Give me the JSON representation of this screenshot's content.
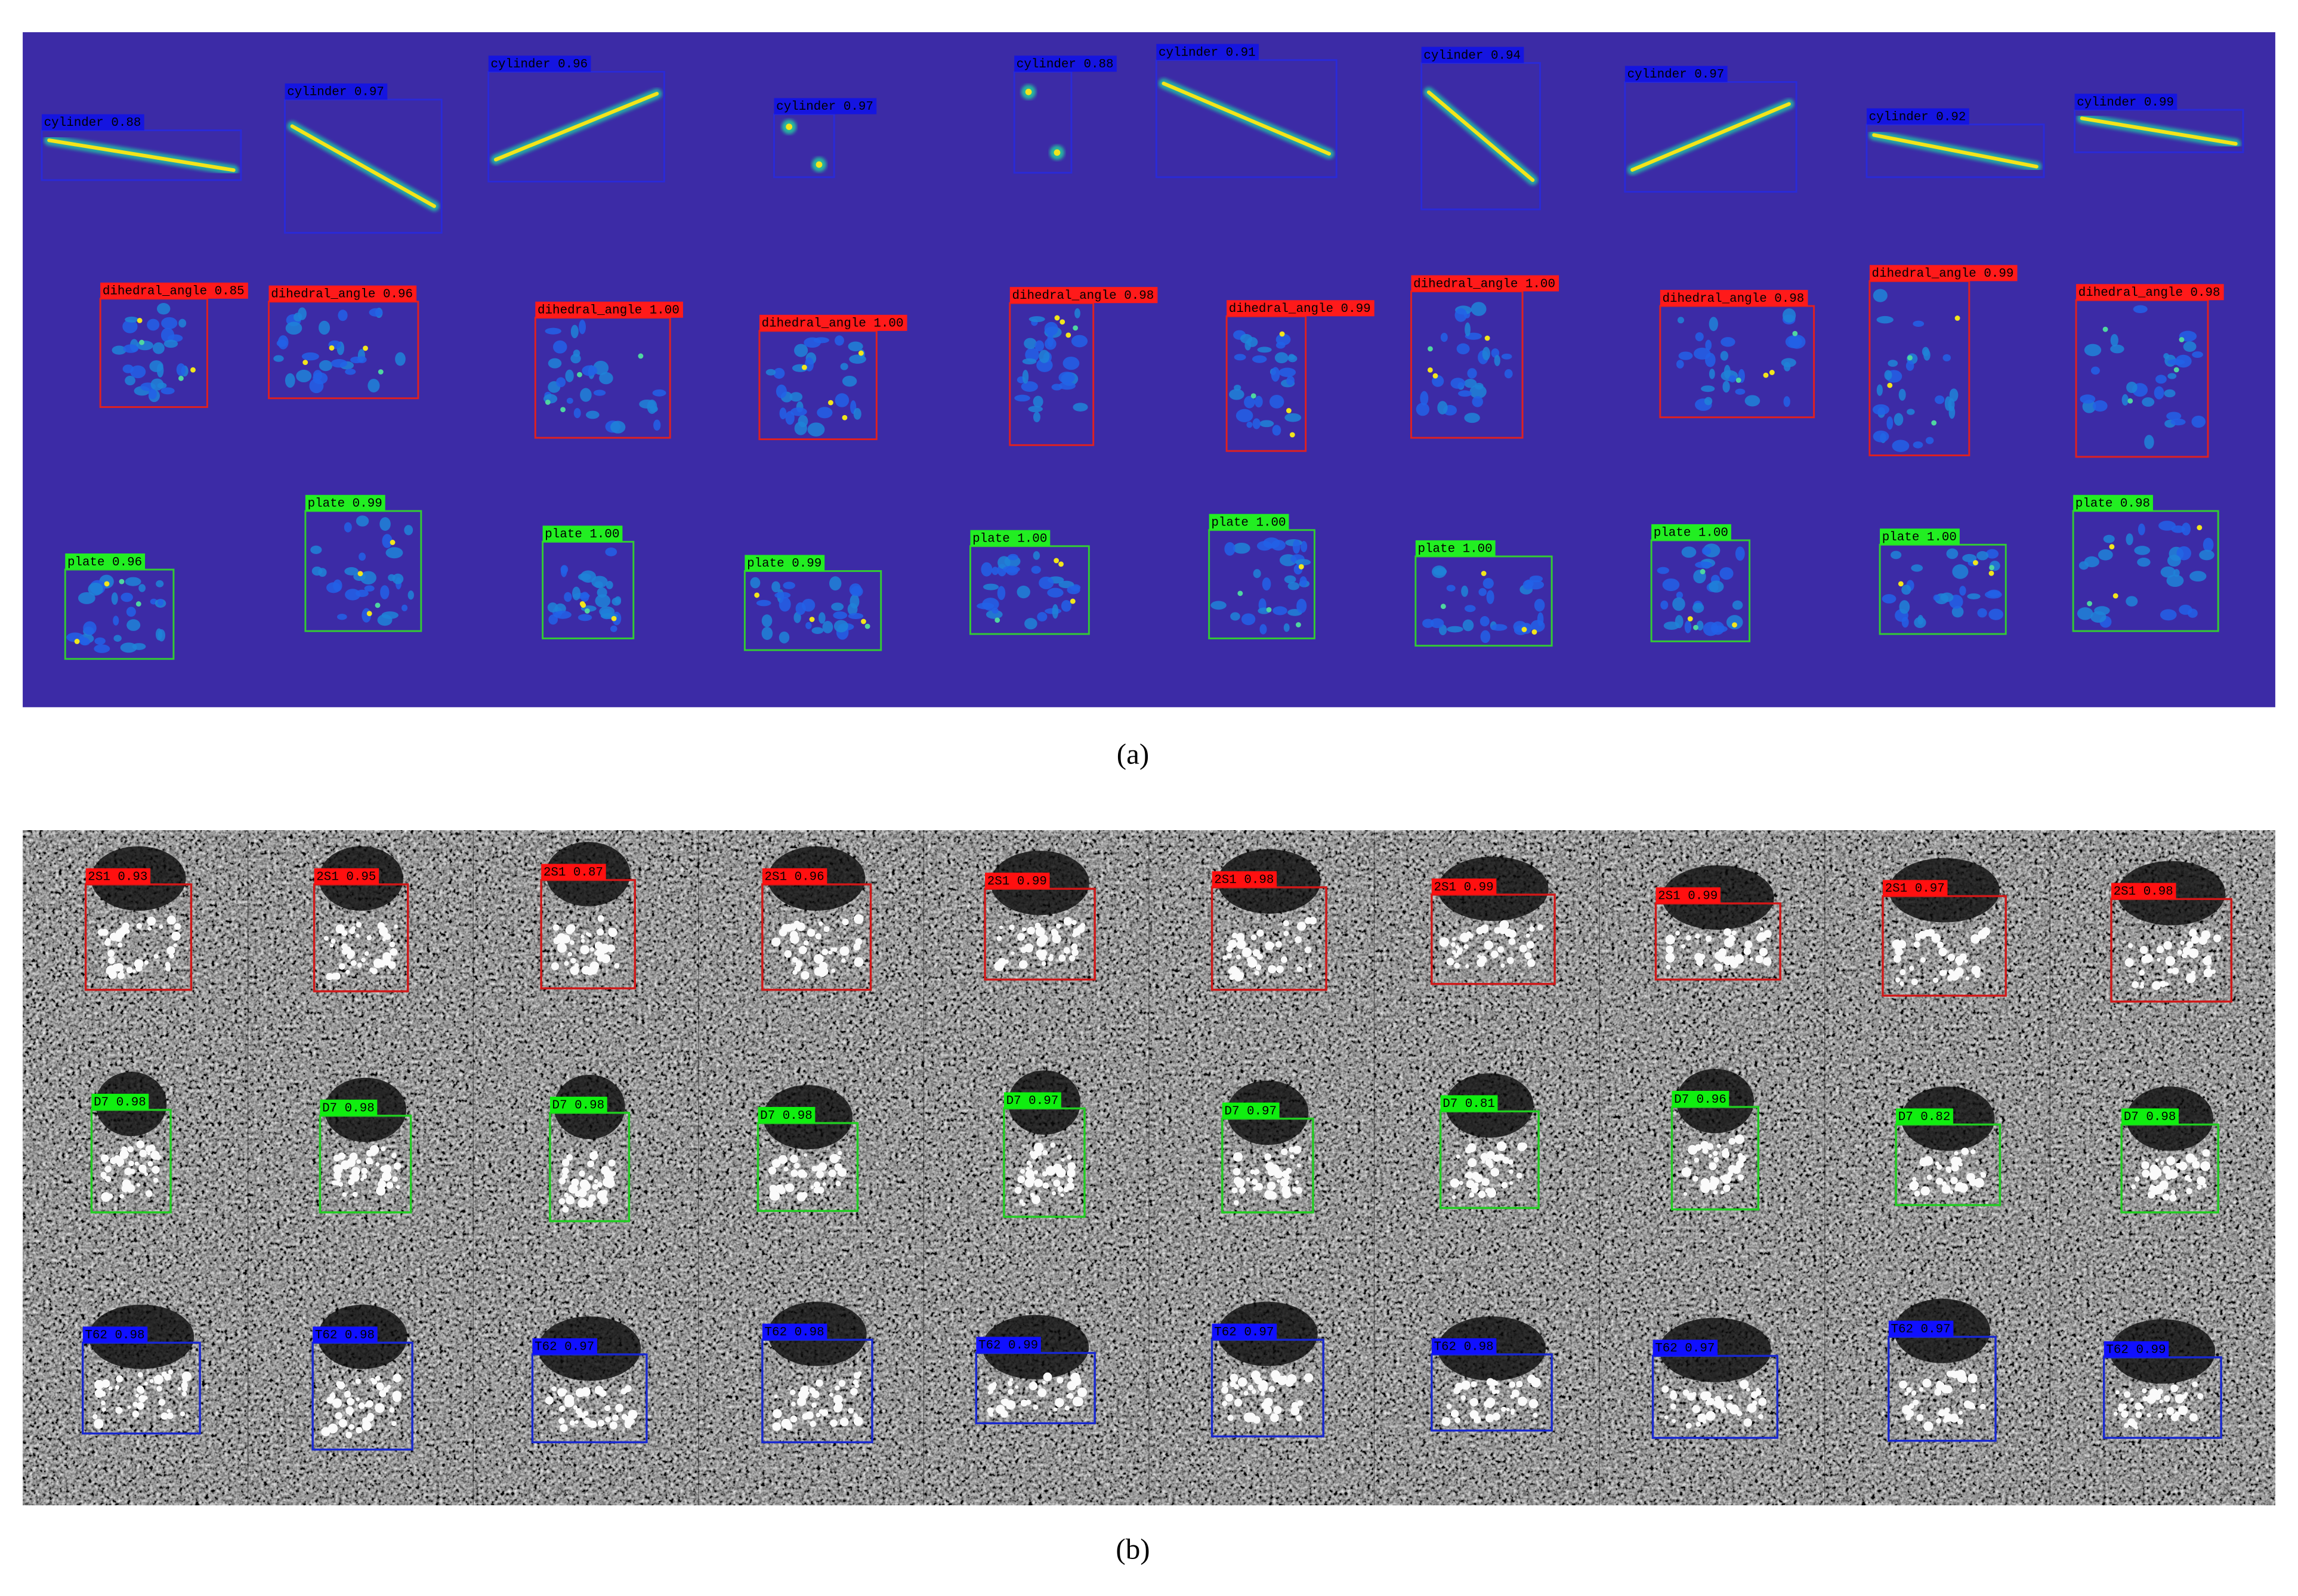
{
  "panel_a": {
    "caption": "(a)",
    "rows": [
      {
        "labels": [
          "cylinder 0.88",
          "cylinder 0.97",
          "cylinder 0.96",
          "cylinder 0.97",
          "cylinder 0.88",
          "cylinder 0.91",
          "cylinder 0.94",
          "cylinder 0.97",
          "cylinder 0.92",
          "cylinder 0.99"
        ]
      },
      {
        "labels": [
          "dihedral_angle 0.85",
          "dihedral_angle 0.96",
          "dihedral_angle 1.00",
          "dihedral_angle 1.00",
          "dihedral_angle 0.98",
          "dihedral_angle 0.99",
          "dihedral_angle 1.00",
          "dihedral_angle 0.98",
          "dihedral_angle 0.99",
          "dihedral_angle 0.98"
        ]
      },
      {
        "labels": [
          "plate 0.96",
          "plate 0.99",
          "plate 1.00",
          "plate 0.99",
          "plate 1.00",
          "plate 1.00",
          "plate 1.00",
          "plate 1.00",
          "plate 1.00",
          "plate 0.98"
        ]
      }
    ]
  },
  "panel_b": {
    "caption": "(b)",
    "rows": [
      {
        "labels": [
          "2S1 0.93",
          "2S1 0.95",
          "2S1 0.87",
          "2S1 0.96",
          "2S1 0.99",
          "2S1 0.98",
          "2S1 0.99",
          "2S1 0.99",
          "2S1 0.97",
          "2S1 0.98"
        ]
      },
      {
        "labels": [
          "D7 0.98",
          "D7 0.98",
          "D7 0.98",
          "D7 0.98",
          "D7 0.97",
          "D7 0.97",
          "D7 0.81",
          "D7 0.96",
          "D7 0.82",
          "D7 0.98"
        ]
      },
      {
        "labels": [
          "T62 0.98",
          "T62 0.98",
          "T62 0.97",
          "T62 0.98",
          "T62 0.99",
          "T62 0.97",
          "T62 0.98",
          "T62 0.97",
          "T62 0.97",
          "T62 0.99"
        ]
      }
    ]
  }
}
